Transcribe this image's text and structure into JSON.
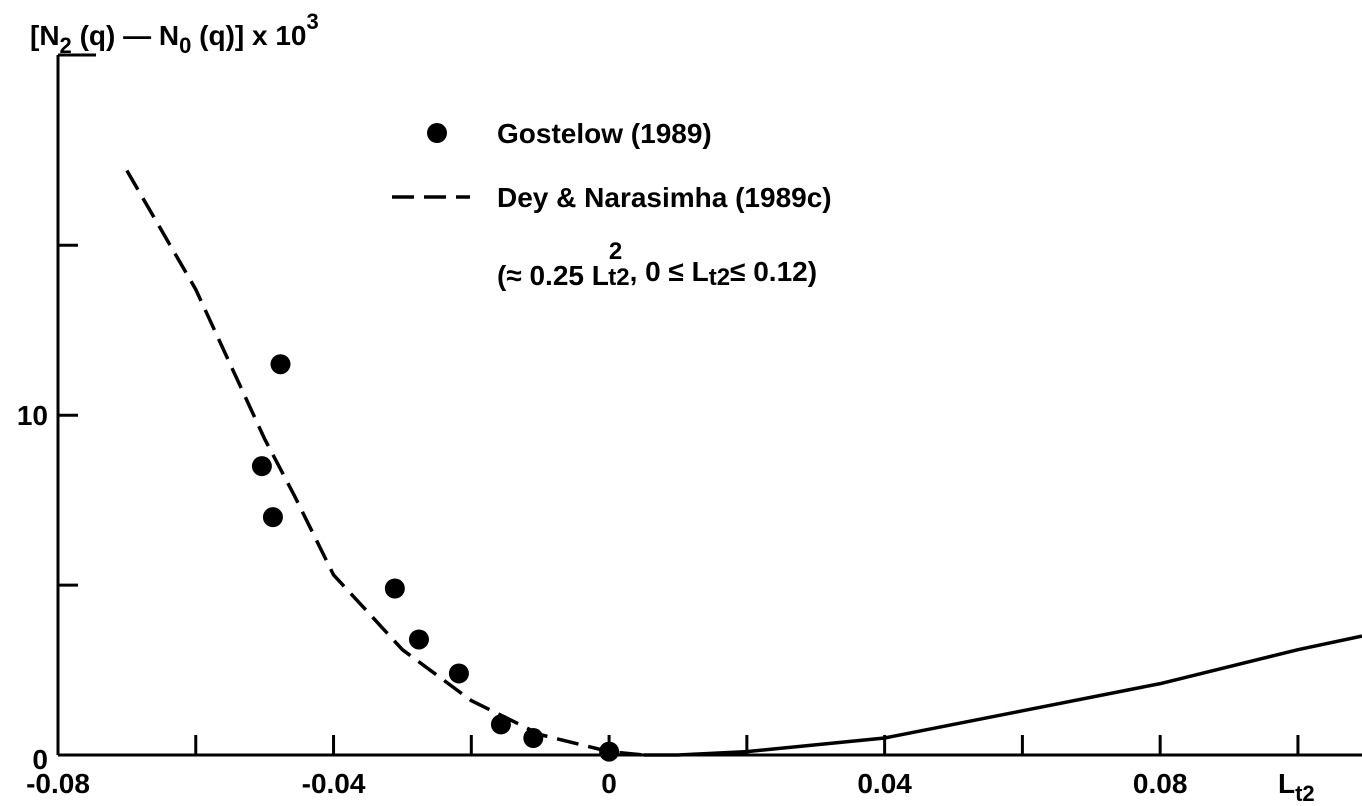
{
  "chart_data": {
    "type": "scatter",
    "ylabel": [
      "[N",
      "2",
      " (q) — N",
      "0",
      " (q)] x 10",
      "3"
    ],
    "xlabel": [
      "L",
      "t2"
    ],
    "annotation": [
      "(≈ 0.25 L",
      "2",
      "t2",
      ", 0 ≤ L",
      "t2",
      "≤ 0.12)"
    ],
    "xlim": [
      -0.08,
      0.1093
    ],
    "ylim": [
      0,
      20.6
    ],
    "xticks": [
      -0.08,
      -0.04,
      0,
      0.04,
      0.08
    ],
    "xminor_ticks": [
      -0.06,
      -0.02,
      0.02,
      0.06,
      0.1
    ],
    "yticks": [
      0,
      10
    ],
    "yminor_ticks": [
      5,
      15,
      20.6
    ],
    "series": [
      {
        "name": "Gostelow (1989)",
        "type": "scatter",
        "color": "#000000",
        "x": [
          -0.0504,
          -0.0477,
          -0.0488,
          -0.0311,
          -0.0276,
          -0.0218,
          -0.0157,
          -0.011,
          0
        ],
        "values": [
          8.5,
          11.5,
          7.0,
          4.9,
          3.4,
          2.4,
          0.9,
          0.5,
          0.1
        ]
      },
      {
        "name": "Dey & Narasimha (1989c)",
        "type": "line",
        "dash": true,
        "color": "#000000",
        "x": [
          -0.07,
          -0.06,
          -0.05,
          -0.0456,
          -0.04,
          -0.03,
          -0.02,
          -0.01,
          0,
          0.005
        ],
        "values": [
          17.2,
          13.7,
          9.3,
          7.6,
          5.3,
          3.1,
          1.6,
          0.6,
          0.1,
          0
        ]
      }
    ],
    "solid_curve": {
      "color": "#000000",
      "x": [
        0.005,
        0.01,
        0.02,
        0.04,
        0.06,
        0.08,
        0.1,
        0.1093
      ],
      "values": [
        0,
        0,
        0.1,
        0.5,
        1.3,
        2.1,
        3.1,
        3.5
      ]
    }
  }
}
